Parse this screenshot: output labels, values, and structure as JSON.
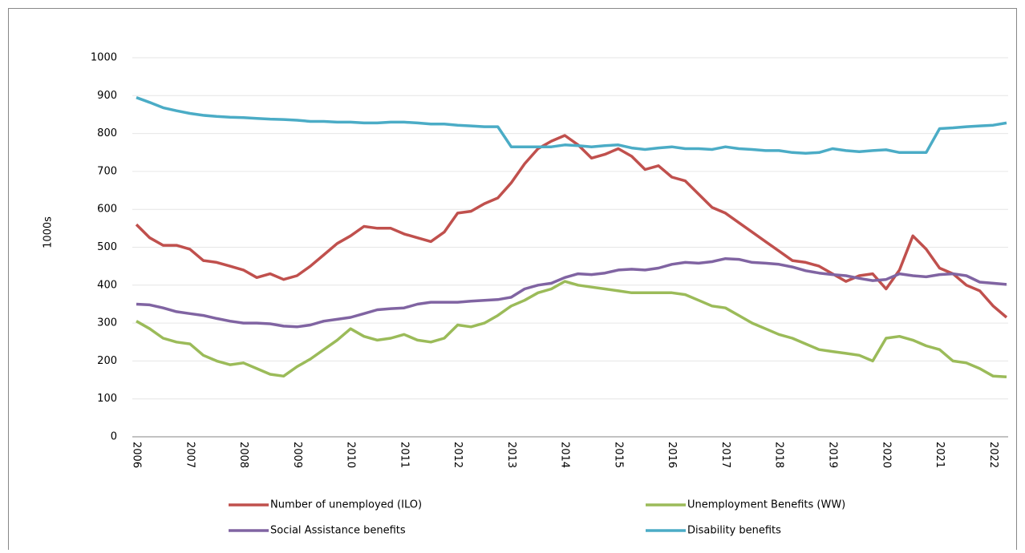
{
  "chart_data": {
    "type": "line",
    "y_label": "1000s",
    "categories": [
      "2006",
      null,
      null,
      null,
      "2007",
      null,
      null,
      null,
      "2008",
      null,
      null,
      null,
      "2009",
      null,
      null,
      null,
      "2010",
      null,
      null,
      null,
      "2011",
      null,
      null,
      null,
      "2012",
      null,
      null,
      null,
      "2013",
      null,
      null,
      null,
      "2014",
      null,
      null,
      null,
      "2015",
      null,
      null,
      null,
      "2016",
      null,
      null,
      null,
      "2017",
      null,
      null,
      null,
      "2018",
      null,
      null,
      null,
      "2019",
      null,
      null,
      null,
      "2020",
      null,
      null,
      null,
      "2021",
      null,
      null,
      null,
      "2022",
      null
    ],
    "series": [
      {
        "name": "Number of unemployed (ILO)",
        "color": "#c0504d",
        "values": [
          560,
          525,
          505,
          505,
          495,
          465,
          460,
          450,
          440,
          420,
          430,
          415,
          425,
          450,
          480,
          510,
          530,
          555,
          550,
          550,
          535,
          525,
          515,
          540,
          590,
          595,
          615,
          630,
          670,
          720,
          760,
          780,
          795,
          770,
          735,
          745,
          760,
          740,
          705,
          715,
          685,
          675,
          640,
          605,
          590,
          565,
          540,
          515,
          490,
          465,
          460,
          450,
          430,
          410,
          425,
          430,
          390,
          440,
          530,
          495,
          445,
          430,
          400,
          385,
          345,
          315
        ]
      },
      {
        "name": "Unemployment Benefits (WW)",
        "color": "#9bbb59",
        "values": [
          305,
          285,
          260,
          250,
          245,
          215,
          200,
          190,
          195,
          180,
          165,
          160,
          185,
          205,
          230,
          255,
          285,
          265,
          255,
          260,
          270,
          255,
          250,
          260,
          295,
          290,
          300,
          320,
          345,
          360,
          380,
          390,
          410,
          400,
          395,
          390,
          385,
          380,
          380,
          380,
          380,
          375,
          360,
          345,
          340,
          320,
          300,
          285,
          270,
          260,
          245,
          230,
          225,
          220,
          215,
          200,
          260,
          265,
          255,
          240,
          230,
          200,
          195,
          180,
          160,
          158
        ]
      },
      {
        "name": "Social Assistance benefits",
        "color": "#8064a2",
        "values": [
          350,
          348,
          340,
          330,
          325,
          320,
          312,
          305,
          300,
          300,
          298,
          292,
          290,
          295,
          305,
          310,
          315,
          325,
          335,
          338,
          340,
          350,
          355,
          355,
          355,
          358,
          360,
          362,
          368,
          390,
          400,
          405,
          420,
          430,
          428,
          432,
          440,
          442,
          440,
          445,
          455,
          460,
          458,
          462,
          470,
          468,
          460,
          458,
          455,
          448,
          438,
          432,
          428,
          425,
          418,
          412,
          415,
          430,
          425,
          422,
          428,
          430,
          425,
          408,
          405,
          402
        ]
      },
      {
        "name": "Disability benefits",
        "color": "#4bacc6",
        "values": [
          895,
          882,
          868,
          860,
          853,
          848,
          845,
          843,
          842,
          840,
          838,
          837,
          835,
          832,
          832,
          830,
          830,
          828,
          828,
          830,
          830,
          828,
          825,
          825,
          822,
          820,
          818,
          818,
          765,
          765,
          765,
          765,
          770,
          768,
          765,
          768,
          770,
          762,
          758,
          762,
          765,
          760,
          760,
          758,
          765,
          760,
          758,
          755,
          755,
          750,
          748,
          750,
          760,
          755,
          752,
          755,
          757,
          750,
          750,
          750,
          813,
          815,
          818,
          820,
          822,
          828
        ]
      }
    ],
    "ylim": [
      0,
      1000
    ],
    "yticks": [
      0,
      100,
      200,
      300,
      400,
      500,
      600,
      700,
      800,
      900,
      1000
    ],
    "grid": true
  }
}
